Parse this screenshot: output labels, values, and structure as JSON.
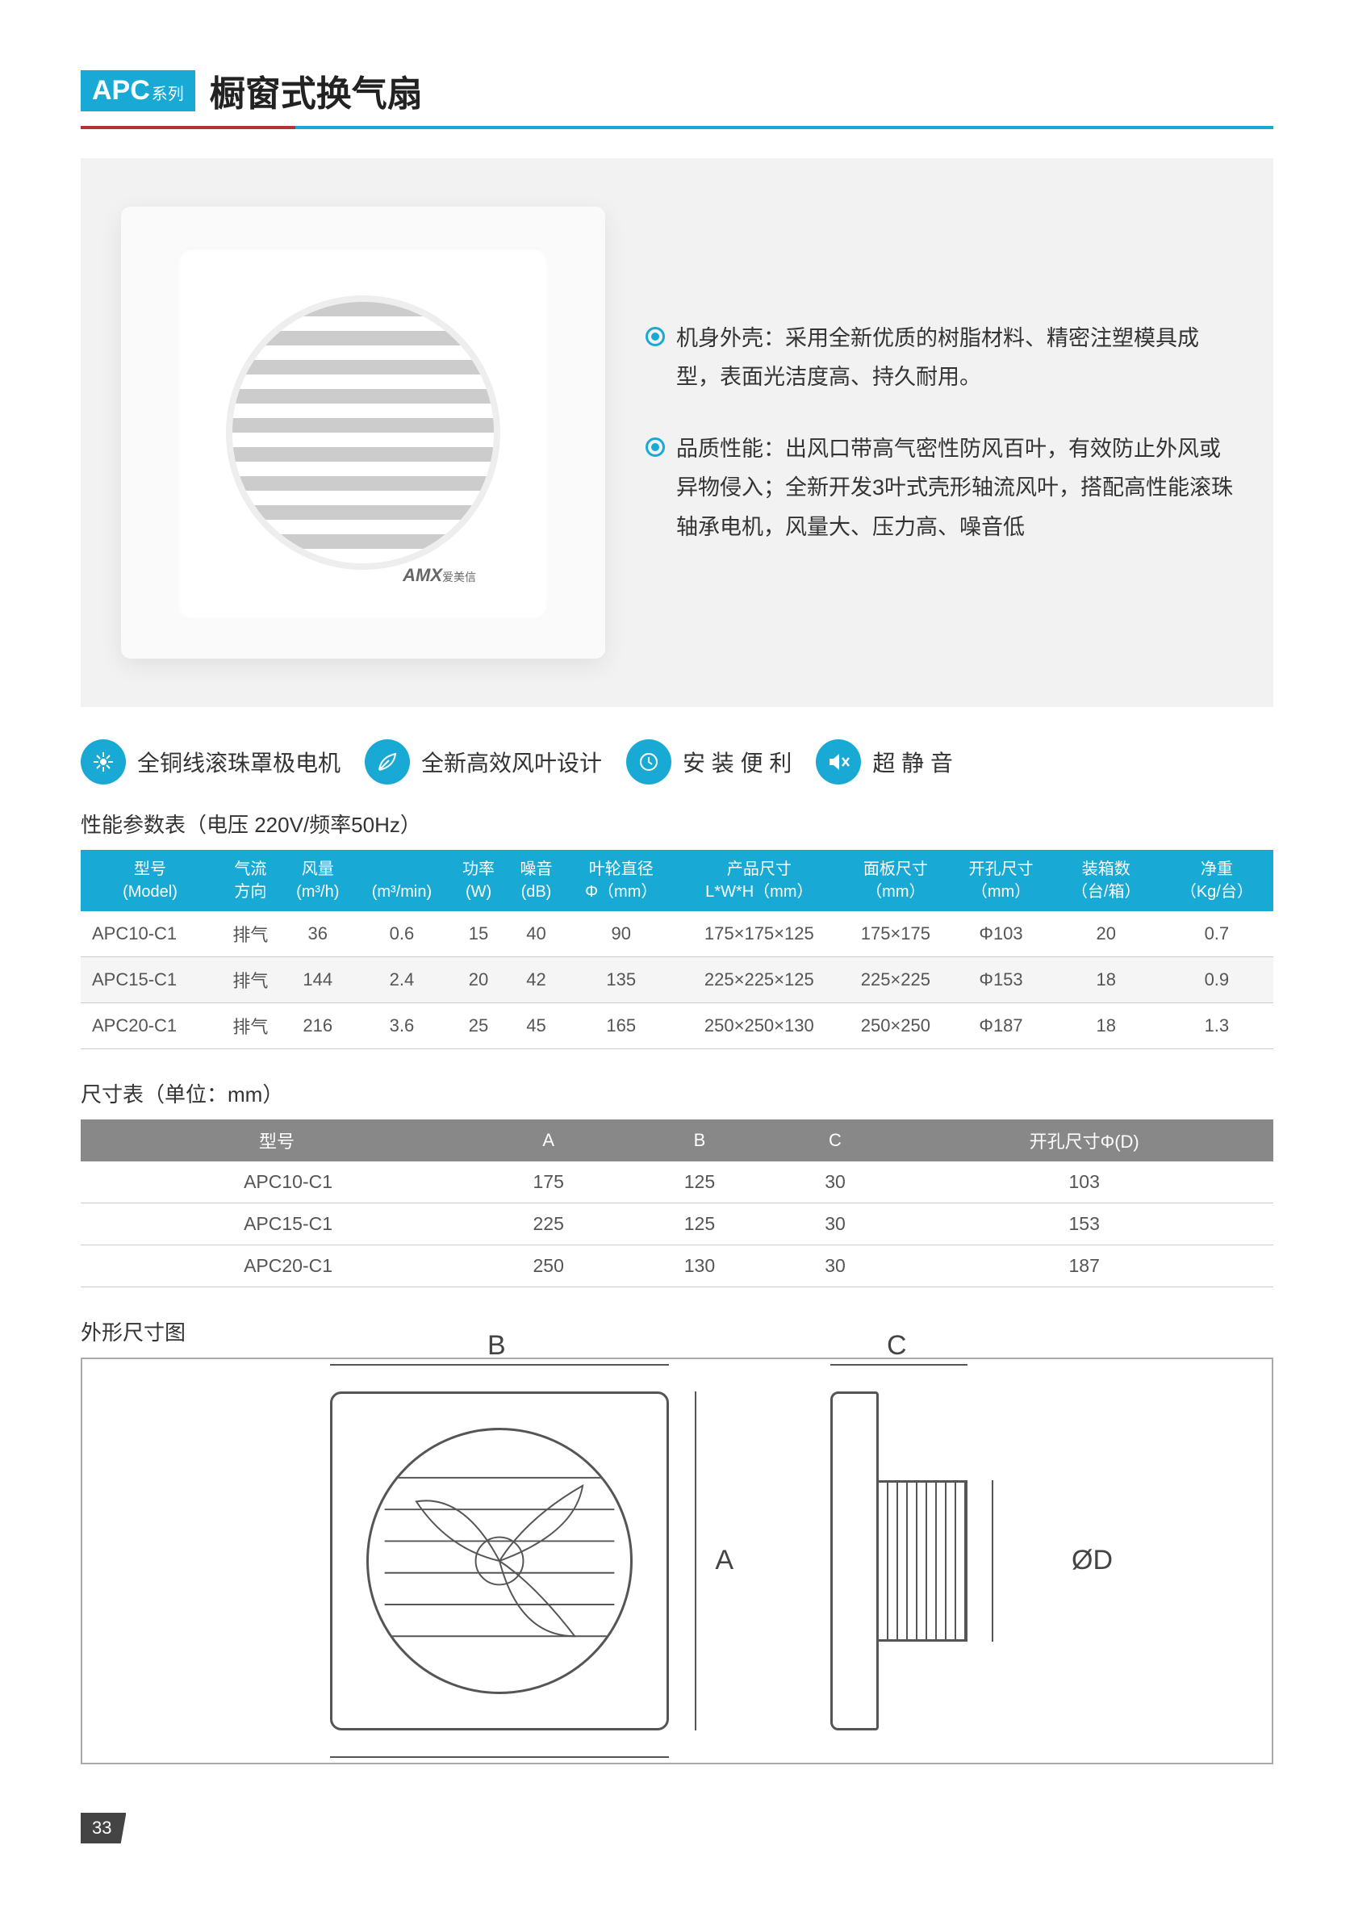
{
  "header": {
    "badge_main": "APC",
    "badge_sub": "系列",
    "title": "橱窗式换气扇"
  },
  "product": {
    "brand": "AMX",
    "brand_sub": "爱美信"
  },
  "bullets": [
    "机身外壳：采用全新优质的树脂材料、精密注塑模具成型，表面光洁度高、持久耐用。",
    "品质性能：出风口带高气密性防风百叶，有效防止外风或异物侵入；全新开发3叶式壳形轴流风叶，搭配高性能滚珠轴承电机，风量大、压力高、噪音低"
  ],
  "features": [
    {
      "icon": "motor",
      "label": "全铜线滚珠罩极电机"
    },
    {
      "icon": "leaf",
      "label": "全新高效风叶设计"
    },
    {
      "icon": "wrench",
      "label": "安 装 便 利"
    },
    {
      "icon": "quiet",
      "label": "超 静 音"
    }
  ],
  "spec_table": {
    "title": "性能参数表（电压 220V/频率50Hz）",
    "columns": [
      "型号\n(Model)",
      "气流\n方向",
      "风量\n(m³/h)",
      "\n(m³/min)",
      "功率\n(W)",
      "噪音\n(dB)",
      "叶轮直径\nΦ（mm）",
      "产品尺寸\nL*W*H（mm）",
      "面板尺寸\n（mm）",
      "开孔尺寸\n（mm）",
      "装箱数\n（台/箱）",
      "净重\n（Kg/台）"
    ],
    "rows": [
      [
        "APC10-C1",
        "排气",
        "36",
        "0.6",
        "15",
        "40",
        "90",
        "175×175×125",
        "175×175",
        "Φ103",
        "20",
        "0.7"
      ],
      [
        "APC15-C1",
        "排气",
        "144",
        "2.4",
        "20",
        "42",
        "135",
        "225×225×125",
        "225×225",
        "Φ153",
        "18",
        "0.9"
      ],
      [
        "APC20-C1",
        "排气",
        "216",
        "3.6",
        "25",
        "45",
        "165",
        "250×250×130",
        "250×250",
        "Φ187",
        "18",
        "1.3"
      ]
    ]
  },
  "dim_table": {
    "title": "尺寸表（单位：mm）",
    "columns": [
      "型号",
      "A",
      "B",
      "C",
      "开孔尺寸Φ(D)"
    ],
    "rows": [
      [
        "APC10-C1",
        "175",
        "125",
        "30",
        "103"
      ],
      [
        "APC15-C1",
        "225",
        "125",
        "30",
        "153"
      ],
      [
        "APC20-C1",
        "250",
        "130",
        "30",
        "187"
      ]
    ]
  },
  "diagram": {
    "title": "外形尺寸图",
    "labels": {
      "A": "A",
      "B": "B",
      "C": "C",
      "D": "ØD"
    }
  },
  "page_number": "33",
  "colors": {
    "accent": "#19a9d5",
    "divider_red": "#b33333",
    "grey_header": "#888888"
  }
}
